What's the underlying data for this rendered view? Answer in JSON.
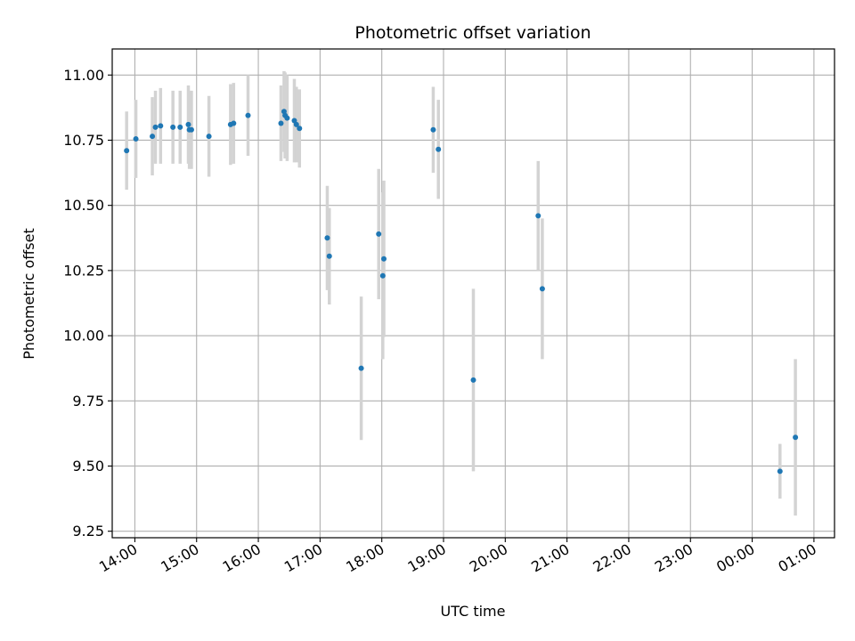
{
  "chart_data": {
    "type": "scatter",
    "title": "Photometric offset variation",
    "xlabel": "UTC time",
    "ylabel": "Photometric offset",
    "xlim": [
      "13:38",
      "25:20"
    ],
    "ylim": [
      9.225,
      11.1
    ],
    "grid": true,
    "x_ticks": [
      {
        "hour": 14,
        "label": "14:00"
      },
      {
        "hour": 15,
        "label": "15:00"
      },
      {
        "hour": 16,
        "label": "16:00"
      },
      {
        "hour": 17,
        "label": "17:00"
      },
      {
        "hour": 18,
        "label": "18:00"
      },
      {
        "hour": 19,
        "label": "19:00"
      },
      {
        "hour": 20,
        "label": "20:00"
      },
      {
        "hour": 21,
        "label": "21:00"
      },
      {
        "hour": 22,
        "label": "22:00"
      },
      {
        "hour": 23,
        "label": "23:00"
      },
      {
        "hour": 24,
        "label": "00:00"
      },
      {
        "hour": 25,
        "label": "01:00"
      }
    ],
    "y_ticks": [
      {
        "value": 9.25,
        "label": "9.25"
      },
      {
        "value": 9.5,
        "label": "9.50"
      },
      {
        "value": 9.75,
        "label": "9.75"
      },
      {
        "value": 10.0,
        "label": "10.00"
      },
      {
        "value": 10.25,
        "label": "10.25"
      },
      {
        "value": 10.5,
        "label": "10.50"
      },
      {
        "value": 10.75,
        "label": "10.75"
      },
      {
        "value": 11.0,
        "label": "11.00"
      }
    ],
    "marker_color": "#1f77b4",
    "errorbar_color": "#d3d3d3",
    "points": [
      {
        "time": "13:52",
        "y": 10.71,
        "err": 0.15
      },
      {
        "time": "14:01",
        "y": 10.755,
        "err": 0.15
      },
      {
        "time": "14:17",
        "y": 10.765,
        "err": 0.15
      },
      {
        "time": "14:20",
        "y": 10.8,
        "err": 0.14
      },
      {
        "time": "14:25",
        "y": 10.805,
        "err": 0.145
      },
      {
        "time": "14:37",
        "y": 10.8,
        "err": 0.14
      },
      {
        "time": "14:44",
        "y": 10.8,
        "err": 0.14
      },
      {
        "time": "14:52",
        "y": 10.81,
        "err": 0.15
      },
      {
        "time": "14:53",
        "y": 10.79,
        "err": 0.15
      },
      {
        "time": "14:55",
        "y": 10.79,
        "err": 0.15
      },
      {
        "time": "15:12",
        "y": 10.765,
        "err": 0.155
      },
      {
        "time": "15:33",
        "y": 10.81,
        "err": 0.155
      },
      {
        "time": "15:36",
        "y": 10.815,
        "err": 0.155
      },
      {
        "time": "15:50",
        "y": 10.845,
        "err": 0.155
      },
      {
        "time": "16:22",
        "y": 10.815,
        "err": 0.145
      },
      {
        "time": "16:25",
        "y": 10.86,
        "err": 0.155
      },
      {
        "time": "16:26",
        "y": 10.845,
        "err": 0.165
      },
      {
        "time": "16:28",
        "y": 10.835,
        "err": 0.165
      },
      {
        "time": "16:35",
        "y": 10.825,
        "err": 0.16
      },
      {
        "time": "16:37",
        "y": 10.81,
        "err": 0.145
      },
      {
        "time": "16:40",
        "y": 10.795,
        "err": 0.15
      },
      {
        "time": "17:07",
        "y": 10.375,
        "err": 0.2
      },
      {
        "time": "17:09",
        "y": 10.305,
        "err": 0.185
      },
      {
        "time": "17:40",
        "y": 9.875,
        "err": 0.275
      },
      {
        "time": "17:57",
        "y": 10.39,
        "err": 0.25
      },
      {
        "time": "18:01",
        "y": 10.23,
        "err": 0.32
      },
      {
        "time": "18:02",
        "y": 10.295,
        "err": 0.3
      },
      {
        "time": "18:50",
        "y": 10.79,
        "err": 0.165
      },
      {
        "time": "18:55",
        "y": 10.715,
        "err": 0.19
      },
      {
        "time": "19:29",
        "y": 9.83,
        "err": 0.35
      },
      {
        "time": "20:32",
        "y": 10.46,
        "err": 0.21
      },
      {
        "time": "20:36",
        "y": 10.18,
        "err": 0.27
      },
      {
        "time": "24:27",
        "y": 9.48,
        "err": 0.105
      },
      {
        "time": "24:42",
        "y": 9.61,
        "err": 0.3
      }
    ]
  }
}
